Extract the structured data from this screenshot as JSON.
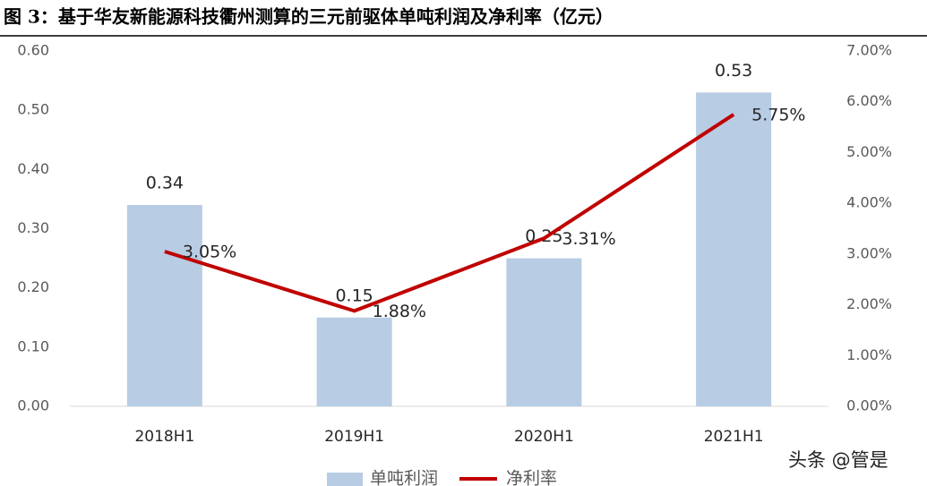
{
  "chart_data": {
    "type": "bar-line",
    "title": "图 3：基于华友新能源科技衢州测算的三元前驱体单吨利润及净利率（亿元）",
    "categories": [
      "2018H1",
      "2019H1",
      "2020H1",
      "2021H1"
    ],
    "series": [
      {
        "name": "单吨利润",
        "type": "bar",
        "color": "#b8cce4",
        "values": [
          0.34,
          0.15,
          0.25,
          0.53
        ]
      },
      {
        "name": "净利率",
        "type": "line",
        "axis": "y2",
        "color": "#c00000",
        "values": [
          3.05,
          1.88,
          3.31,
          5.75
        ],
        "value_labels": [
          "3.05%",
          "1.88%",
          "3.31%",
          "5.75%"
        ]
      }
    ],
    "ylim": [
      0,
      0.6
    ],
    "yticks": [
      {
        "value": 0,
        "label": "0.00"
      },
      {
        "value": 0.1,
        "label": "0.10"
      },
      {
        "value": 0.2,
        "label": "0.20"
      },
      {
        "value": 0.3,
        "label": "0.30"
      },
      {
        "value": 0.4,
        "label": "0.40"
      },
      {
        "value": 0.5,
        "label": "0.50"
      },
      {
        "value": 0.6,
        "label": "0.60"
      }
    ],
    "y2lim": [
      0,
      7
    ],
    "y2ticks": [
      {
        "value": 0,
        "label": "0.00%"
      },
      {
        "value": 1,
        "label": "1.00%"
      },
      {
        "value": 2,
        "label": "2.00%"
      },
      {
        "value": 3,
        "label": "3.00%"
      },
      {
        "value": 4,
        "label": "4.00%"
      },
      {
        "value": 5,
        "label": "5.00%"
      },
      {
        "value": 6,
        "label": "6.00%"
      },
      {
        "value": 7,
        "label": "7.00%"
      }
    ],
    "legend": "bottom",
    "watermark": "头条 @管是"
  }
}
